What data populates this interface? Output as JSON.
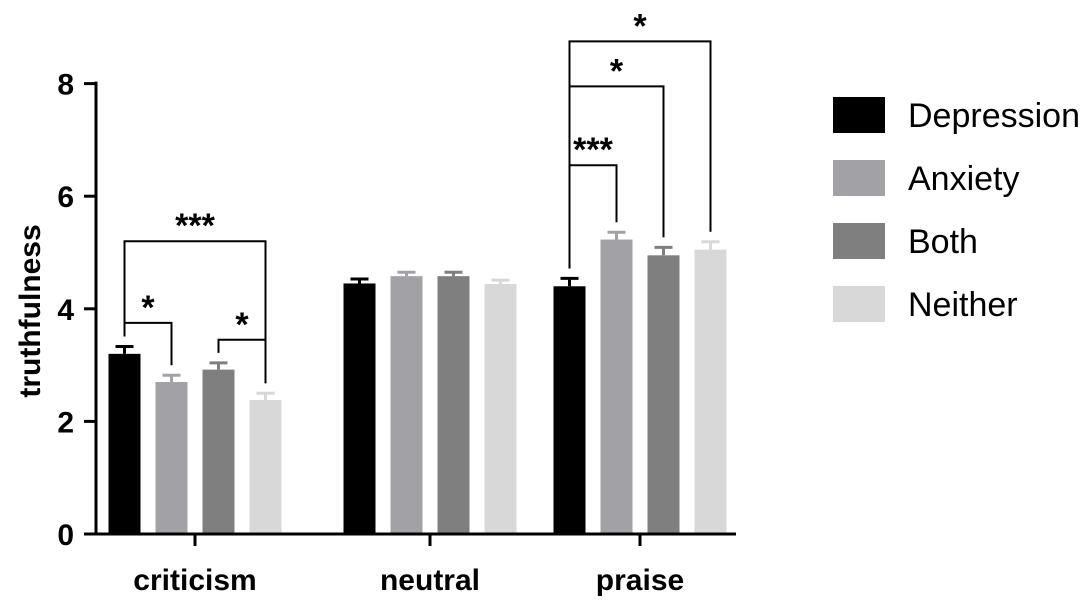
{
  "chart_data": {
    "type": "bar",
    "title": "",
    "xlabel": "",
    "ylabel": "truthfulness",
    "ylim": [
      0,
      8
    ],
    "yticks": [
      "0",
      "2",
      "4",
      "6",
      "8"
    ],
    "categories": [
      "criticism",
      "neutral",
      "praise"
    ],
    "series": [
      {
        "name": "Depression",
        "color": "#000000",
        "values": [
          3.2,
          4.45,
          4.4
        ],
        "errors": [
          0.13,
          0.08,
          0.14
        ]
      },
      {
        "name": "Anxiety",
        "color": "#a2a2a6",
        "values": [
          2.7,
          4.58,
          5.23
        ],
        "errors": [
          0.12,
          0.07,
          0.13
        ]
      },
      {
        "name": "Both",
        "color": "#7f7f7f",
        "values": [
          2.92,
          4.58,
          4.95
        ],
        "errors": [
          0.12,
          0.07,
          0.14
        ]
      },
      {
        "name": "Neither",
        "color": "#d8d8d8",
        "values": [
          2.38,
          4.44,
          5.05
        ],
        "errors": [
          0.12,
          0.07,
          0.14
        ]
      }
    ],
    "significance": [
      {
        "category": "criticism",
        "from": "Depression",
        "to": "Neither",
        "label": "***",
        "level": 5.2
      },
      {
        "category": "criticism",
        "from": "Depression",
        "to": "Anxiety",
        "label": "*",
        "level": 3.75
      },
      {
        "category": "criticism",
        "from": "Both",
        "to": "Neither",
        "label": "*",
        "level": 3.45
      },
      {
        "category": "praise",
        "from": "Depression",
        "to": "Neither",
        "label": "*",
        "level": 8.75
      },
      {
        "category": "praise",
        "from": "Depression",
        "to": "Both",
        "label": "*",
        "level": 7.95
      },
      {
        "category": "praise",
        "from": "Depression",
        "to": "Anxiety",
        "label": "***",
        "level": 6.55
      }
    ],
    "legend_position": "right"
  }
}
